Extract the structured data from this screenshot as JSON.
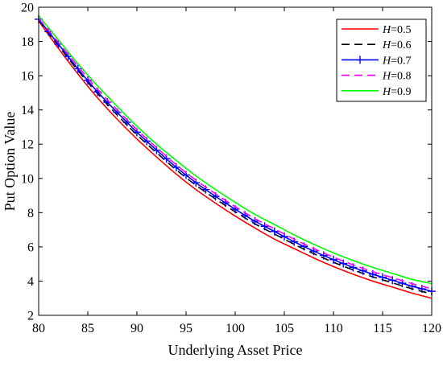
{
  "chart_data": {
    "type": "line",
    "title": "",
    "xlabel": "Underlying Asset Price",
    "ylabel": "Put Option Value",
    "xlim": [
      80,
      120
    ],
    "ylim": [
      2,
      20
    ],
    "xticks": [
      80,
      85,
      90,
      95,
      100,
      105,
      110,
      115,
      120
    ],
    "yticks": [
      2,
      4,
      6,
      8,
      10,
      12,
      14,
      16,
      18,
      20
    ],
    "grid": false,
    "legend_position": "top-right",
    "x": [
      80,
      82,
      84,
      86,
      88,
      90,
      92,
      94,
      96,
      98,
      100,
      102,
      104,
      106,
      108,
      110,
      112,
      114,
      116,
      118,
      120
    ],
    "series": [
      {
        "name": "H=0.5",
        "name_prefix": "H",
        "name_value": "=0.5",
        "color": "#ff0000",
        "style": "solid",
        "marker": "none",
        "values": [
          19.2,
          17.6,
          16.1,
          14.7,
          13.45,
          12.3,
          11.25,
          10.25,
          9.35,
          8.55,
          7.8,
          7.1,
          6.45,
          5.9,
          5.35,
          4.85,
          4.4,
          4.0,
          3.65,
          3.3,
          3.0
        ]
      },
      {
        "name": "H=0.6",
        "name_prefix": "H",
        "name_value": "=0.6",
        "color": "#000000",
        "style": "dashed",
        "marker": "none",
        "values": [
          19.25,
          17.75,
          16.3,
          14.95,
          13.7,
          12.55,
          11.5,
          10.5,
          9.6,
          8.8,
          8.05,
          7.35,
          6.75,
          6.15,
          5.6,
          5.1,
          4.65,
          4.25,
          3.9,
          3.55,
          3.25
        ]
      },
      {
        "name": "H=0.7",
        "name_prefix": "H",
        "name_value": "=0.7",
        "color": "#0000ff",
        "style": "solid",
        "marker": "plus",
        "values": [
          19.3,
          17.85,
          16.4,
          15.05,
          13.85,
          12.7,
          11.65,
          10.65,
          9.75,
          8.95,
          8.2,
          7.5,
          6.9,
          6.3,
          5.75,
          5.25,
          4.8,
          4.4,
          4.05,
          3.7,
          3.4
        ]
      },
      {
        "name": "H=0.8",
        "name_prefix": "H",
        "name_value": "=0.8",
        "color": "#ff00ff",
        "style": "dashed",
        "marker": "none",
        "values": [
          19.35,
          17.95,
          16.55,
          15.2,
          14.0,
          12.85,
          11.8,
          10.8,
          9.9,
          9.1,
          8.35,
          7.65,
          7.05,
          6.45,
          5.9,
          5.4,
          4.95,
          4.55,
          4.2,
          3.85,
          3.55
        ]
      },
      {
        "name": "H=0.9",
        "name_prefix": "H",
        "name_value": "=0.9",
        "color": "#00ff00",
        "style": "solid",
        "marker": "none",
        "values": [
          19.5,
          18.1,
          16.7,
          15.4,
          14.2,
          13.05,
          12.0,
          11.05,
          10.15,
          9.35,
          8.6,
          7.9,
          7.3,
          6.7,
          6.15,
          5.65,
          5.2,
          4.8,
          4.45,
          4.1,
          3.85
        ]
      }
    ]
  }
}
